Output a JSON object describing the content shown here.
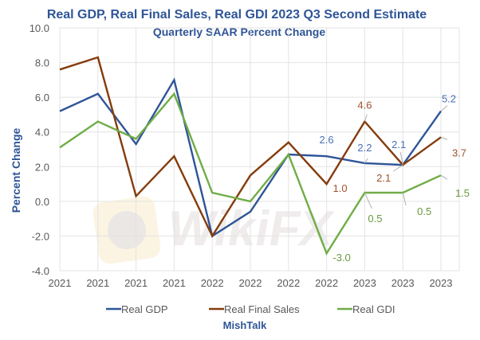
{
  "chart_data": {
    "type": "line",
    "title": "Real GDP, Real Final Sales, Real GDI 2023 Q3 Second Estimate",
    "subtitle": "Quarterly SAAR Percent Change",
    "xlabel": "",
    "ylabel": "Percent Change",
    "source": "MishTalk",
    "categories": [
      "2021",
      "2021",
      "2021",
      "2021",
      "2022",
      "2022",
      "2022",
      "2022",
      "2023",
      "2023",
      "2023"
    ],
    "ylim": [
      -4.0,
      10.0
    ],
    "yticks": [
      "10.0",
      "8.0",
      "6.0",
      "4.0",
      "2.0",
      "0.0",
      "-2.0",
      "-4.0"
    ],
    "ytick_values": [
      10,
      8,
      6,
      4,
      2,
      0,
      -2,
      -4
    ],
    "grid": true,
    "legend_position": "bottom",
    "series": [
      {
        "name": "Real GDP",
        "color": "#2f5597",
        "values": [
          5.2,
          6.2,
          3.3,
          7.0,
          -2.0,
          -0.6,
          2.7,
          2.6,
          2.2,
          2.1,
          5.2
        ],
        "data_labels": [
          {
            "index": 7,
            "text": "2.6"
          },
          {
            "index": 8,
            "text": "2.2"
          },
          {
            "index": 9,
            "text": "2.1"
          },
          {
            "index": 10,
            "text": "5.2"
          }
        ]
      },
      {
        "name": "Real Final Sales",
        "color": "#843c0c",
        "values": [
          7.6,
          8.3,
          0.3,
          2.6,
          -2.0,
          1.5,
          3.4,
          1.0,
          4.6,
          2.1,
          3.7
        ],
        "data_labels": [
          {
            "index": 7,
            "text": "1.0"
          },
          {
            "index": 8,
            "text": "4.6"
          },
          {
            "index": 9,
            "text": "2.1"
          },
          {
            "index": 10,
            "text": "3.7"
          }
        ]
      },
      {
        "name": "Real GDI",
        "color": "#70ad47",
        "values": [
          3.1,
          4.6,
          3.6,
          6.2,
          0.5,
          0.0,
          2.7,
          -3.0,
          0.5,
          0.5,
          1.5
        ],
        "data_labels": [
          {
            "index": 7,
            "text": "-3.0"
          },
          {
            "index": 8,
            "text": "0.5"
          },
          {
            "index": 9,
            "text": "0.5"
          },
          {
            "index": 10,
            "text": "1.5"
          }
        ]
      }
    ],
    "label_colors": {
      "Real GDP": "#4a6fb5",
      "Real Final Sales": "#a0532a",
      "Real GDI": "#6a9a3e"
    },
    "watermark": "WikiFX"
  }
}
